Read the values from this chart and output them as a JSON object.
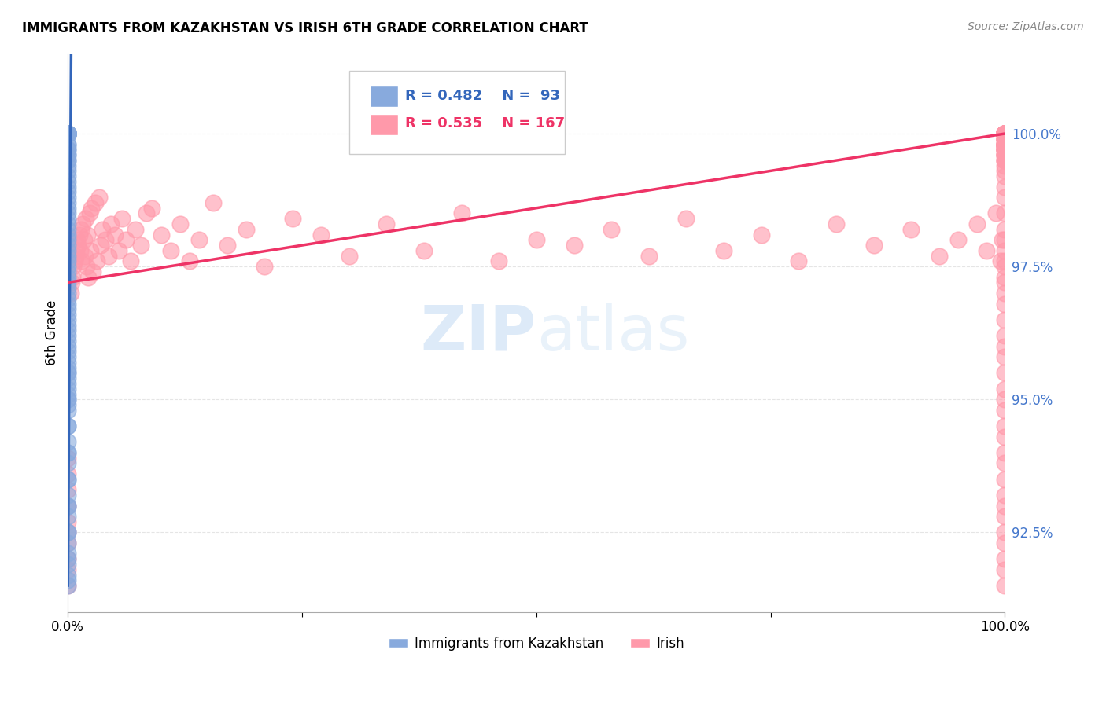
{
  "title": "IMMIGRANTS FROM KAZAKHSTAN VS IRISH 6TH GRADE CORRELATION CHART",
  "source": "Source: ZipAtlas.com",
  "ylabel": "6th Grade",
  "y_ticks": [
    92.5,
    95.0,
    97.5,
    100.0
  ],
  "y_tick_labels": [
    "92.5%",
    "95.0%",
    "97.5%",
    "100.0%"
  ],
  "x_ticks": [
    0.0,
    0.25,
    0.5,
    0.75,
    1.0
  ],
  "x_tick_labels": [
    "0.0%",
    "",
    "",
    "",
    "100.0%"
  ],
  "legend_blue_r": "R = 0.482",
  "legend_blue_n": "N =  93",
  "legend_pink_r": "R = 0.535",
  "legend_pink_n": "N = 167",
  "watermark_zip": "ZIP",
  "watermark_atlas": "atlas",
  "blue_color": "#88AADD",
  "blue_edge_color": "#88AADD",
  "pink_color": "#FF99AA",
  "pink_edge_color": "#FF99AA",
  "blue_line_color": "#3366BB",
  "pink_line_color": "#EE3366",
  "tick_color": "#4477CC",
  "background_color": "#FFFFFF",
  "ylim_min": 91.0,
  "ylim_max": 101.5,
  "xlim_min": 0.0,
  "xlim_max": 1.0,
  "blue_scatter_x": [
    0.0,
    0.0,
    0.0,
    0.0,
    0.0,
    0.0,
    0.0,
    0.0,
    0.0,
    0.0,
    0.0,
    0.0,
    0.0,
    0.0,
    0.0,
    0.0,
    0.0,
    0.0,
    0.0,
    0.0,
    0.0,
    0.0,
    0.0,
    0.0,
    0.0,
    0.0,
    0.0,
    0.0,
    0.0,
    0.0,
    0.0,
    0.0,
    0.0,
    0.0,
    0.0,
    0.0,
    0.0,
    0.0,
    0.0,
    0.0,
    0.0,
    0.0,
    0.0,
    0.0,
    0.0,
    0.0,
    0.0,
    0.0,
    0.0,
    0.0,
    0.0,
    0.0,
    0.0,
    0.0,
    0.0,
    0.0,
    0.0,
    0.0,
    0.0,
    0.0,
    0.0,
    0.0,
    0.0,
    0.0,
    0.0,
    0.0,
    0.0,
    0.0,
    0.0,
    0.0,
    0.0,
    0.0,
    0.0,
    0.0,
    0.0,
    0.0,
    0.0,
    0.0,
    0.0,
    0.0,
    0.0,
    0.0,
    0.0,
    0.0,
    0.0,
    0.0,
    0.0,
    0.0,
    0.0,
    0.0,
    0.0,
    0.0,
    0.0
  ],
  "blue_scatter_y": [
    100.0,
    100.0,
    100.0,
    100.0,
    100.0,
    100.0,
    100.0,
    100.0,
    100.0,
    100.0,
    100.0,
    100.0,
    100.0,
    100.0,
    100.0,
    99.8,
    99.8,
    99.7,
    99.7,
    99.6,
    99.6,
    99.5,
    99.5,
    99.4,
    99.3,
    99.2,
    99.1,
    99.0,
    98.9,
    98.8,
    98.7,
    98.6,
    98.5,
    98.4,
    98.3,
    98.2,
    98.1,
    98.0,
    97.9,
    97.8,
    97.7,
    97.6,
    97.5,
    97.4,
    97.3,
    97.2,
    97.1,
    97.0,
    96.9,
    96.8,
    96.7,
    96.6,
    96.5,
    96.4,
    96.3,
    96.2,
    96.1,
    96.0,
    95.9,
    95.8,
    95.7,
    95.6,
    95.5,
    95.4,
    95.3,
    95.2,
    95.1,
    95.0,
    94.9,
    94.8,
    94.5,
    94.2,
    94.0,
    93.8,
    93.5,
    93.2,
    93.0,
    92.8,
    92.5,
    92.3,
    92.1,
    91.9,
    91.7,
    91.6,
    91.5,
    92.0,
    92.5,
    93.0,
    93.5,
    94.0,
    94.5,
    95.0,
    95.5
  ],
  "pink_scatter_x": [
    0.0,
    0.0,
    0.0,
    0.0,
    0.0,
    0.0,
    0.0,
    0.0,
    0.0,
    0.0,
    0.003,
    0.004,
    0.005,
    0.006,
    0.007,
    0.008,
    0.009,
    0.01,
    0.011,
    0.012,
    0.013,
    0.014,
    0.015,
    0.016,
    0.017,
    0.018,
    0.019,
    0.02,
    0.021,
    0.022,
    0.023,
    0.024,
    0.025,
    0.027,
    0.029,
    0.031,
    0.033,
    0.035,
    0.037,
    0.04,
    0.043,
    0.046,
    0.05,
    0.054,
    0.058,
    0.062,
    0.067,
    0.072,
    0.078,
    0.084,
    0.09,
    0.1,
    0.11,
    0.12,
    0.13,
    0.14,
    0.155,
    0.17,
    0.19,
    0.21,
    0.24,
    0.27,
    0.3,
    0.34,
    0.38,
    0.42,
    0.46,
    0.5,
    0.54,
    0.58,
    0.62,
    0.66,
    0.7,
    0.74,
    0.78,
    0.82,
    0.86,
    0.9,
    0.93,
    0.95,
    0.97,
    0.98,
    0.99,
    0.995,
    0.997,
    1.0,
    1.0,
    1.0,
    1.0,
    1.0,
    1.0,
    1.0,
    1.0,
    1.0,
    1.0,
    1.0,
    1.0,
    1.0,
    1.0,
    1.0,
    1.0,
    1.0,
    1.0,
    1.0,
    1.0,
    1.0,
    1.0,
    1.0,
    1.0,
    1.0,
    1.0,
    1.0,
    1.0,
    1.0,
    1.0,
    1.0,
    1.0,
    1.0,
    1.0,
    1.0,
    1.0,
    1.0,
    1.0,
    1.0,
    1.0,
    1.0,
    1.0,
    1.0,
    1.0,
    1.0,
    1.0,
    1.0,
    1.0,
    1.0,
    1.0,
    1.0,
    1.0,
    1.0,
    1.0,
    1.0,
    1.0,
    1.0,
    1.0,
    1.0,
    1.0,
    1.0,
    1.0,
    1.0,
    1.0,
    1.0,
    1.0,
    1.0,
    1.0,
    1.0,
    1.0,
    1.0,
    1.0,
    1.0,
    1.0,
    1.0,
    1.0,
    1.0,
    1.0,
    1.0,
    1.0,
    1.0,
    1.0
  ],
  "pink_scatter_y": [
    91.5,
    91.8,
    92.0,
    92.3,
    92.5,
    92.7,
    93.0,
    93.3,
    93.6,
    93.9,
    97.0,
    97.2,
    97.3,
    97.5,
    97.6,
    97.7,
    97.8,
    98.0,
    97.9,
    98.1,
    97.8,
    98.2,
    97.6,
    98.3,
    98.0,
    97.7,
    98.4,
    97.5,
    98.1,
    97.3,
    98.5,
    97.8,
    98.6,
    97.4,
    98.7,
    97.6,
    98.8,
    97.9,
    98.2,
    98.0,
    97.7,
    98.3,
    98.1,
    97.8,
    98.4,
    98.0,
    97.6,
    98.2,
    97.9,
    98.5,
    98.6,
    98.1,
    97.8,
    98.3,
    97.6,
    98.0,
    98.7,
    97.9,
    98.2,
    97.5,
    98.4,
    98.1,
    97.7,
    98.3,
    97.8,
    98.5,
    97.6,
    98.0,
    97.9,
    98.2,
    97.7,
    98.4,
    97.8,
    98.1,
    97.6,
    98.3,
    97.9,
    98.2,
    97.7,
    98.0,
    98.3,
    97.8,
    98.5,
    97.6,
    98.0,
    100.0,
    100.0,
    100.0,
    100.0,
    100.0,
    100.0,
    100.0,
    100.0,
    100.0,
    100.0,
    100.0,
    100.0,
    100.0,
    100.0,
    100.0,
    100.0,
    100.0,
    100.0,
    100.0,
    100.0,
    99.8,
    99.8,
    99.8,
    99.9,
    99.9,
    99.9,
    99.9,
    99.8,
    99.7,
    99.8,
    99.9,
    99.7,
    99.6,
    99.7,
    99.8,
    99.7,
    99.6,
    99.5,
    99.8,
    99.7,
    99.6,
    99.5,
    99.8,
    99.7,
    99.6,
    99.5,
    99.4,
    99.3,
    99.2,
    99.0,
    98.8,
    98.5,
    98.2,
    98.0,
    97.8,
    97.6,
    97.5,
    97.3,
    97.2,
    97.0,
    96.8,
    96.5,
    96.2,
    96.0,
    95.8,
    95.5,
    95.2,
    95.0,
    94.8,
    94.5,
    94.3,
    94.0,
    93.8,
    93.5,
    93.2,
    93.0,
    92.8,
    92.5,
    92.3,
    92.0,
    91.8,
    91.5
  ],
  "blue_line": {
    "x0": 0.0,
    "x1": 0.003,
    "y0": 91.5,
    "y1": 100.2
  },
  "pink_line": {
    "x0": 0.0,
    "x1": 1.0,
    "y0": 97.2,
    "y1": 100.0
  }
}
